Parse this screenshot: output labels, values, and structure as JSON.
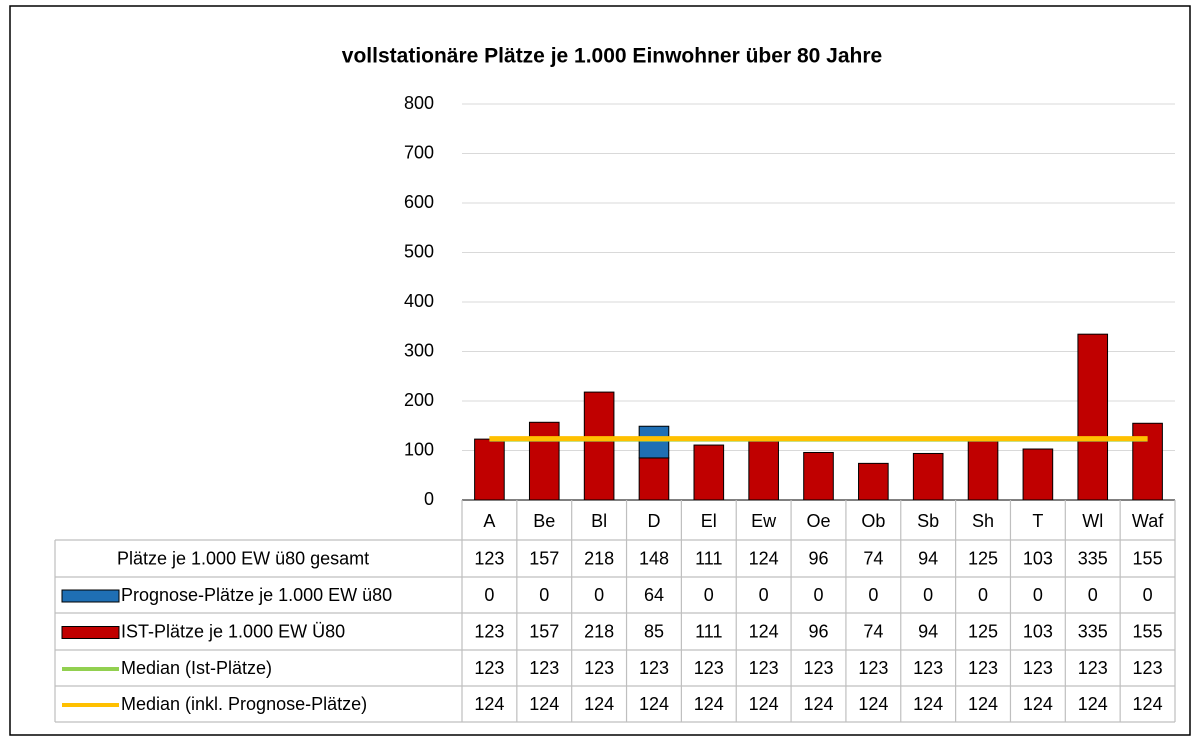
{
  "chart_data": {
    "type": "bar",
    "stacked": true,
    "title": "vollstationäre Plätze je 1.000 Einwohner über 80 Jahre",
    "categories": [
      "A",
      "Be",
      "Bl",
      "D",
      "El",
      "Ew",
      "Oe",
      "Ob",
      "Sb",
      "Sh",
      "T",
      "Wl",
      "Waf"
    ],
    "series": [
      {
        "name": "Plätze je 1.000 EW ü80 gesamt",
        "kind": "none",
        "values": [
          123,
          157,
          218,
          148,
          111,
          124,
          96,
          74,
          94,
          125,
          103,
          335,
          155
        ]
      },
      {
        "name": "Prognose-Plätze je 1.000 EW ü80",
        "kind": "bar",
        "color": "#1f6fb4",
        "values": [
          0,
          0,
          0,
          64,
          0,
          0,
          0,
          0,
          0,
          0,
          0,
          0,
          0
        ]
      },
      {
        "name": "IST-Plätze je 1.000 EW Ü80",
        "kind": "bar",
        "color": "#c00000",
        "values": [
          123,
          157,
          218,
          85,
          111,
          124,
          96,
          74,
          94,
          125,
          103,
          335,
          155
        ]
      },
      {
        "name": "Median (Ist-Plätze)",
        "kind": "line",
        "color": "#92d050",
        "values": [
          123,
          123,
          123,
          123,
          123,
          123,
          123,
          123,
          123,
          123,
          123,
          123,
          123
        ]
      },
      {
        "name": "Median (inkl. Prognose-Plätze)",
        "kind": "line",
        "color": "#ffc000",
        "values": [
          124,
          124,
          124,
          124,
          124,
          124,
          124,
          124,
          124,
          124,
          124,
          124,
          124
        ]
      }
    ],
    "ylim": [
      0,
      800
    ],
    "yticks": [
      0,
      100,
      200,
      300,
      400,
      500,
      600,
      700,
      800
    ],
    "grid": true
  }
}
